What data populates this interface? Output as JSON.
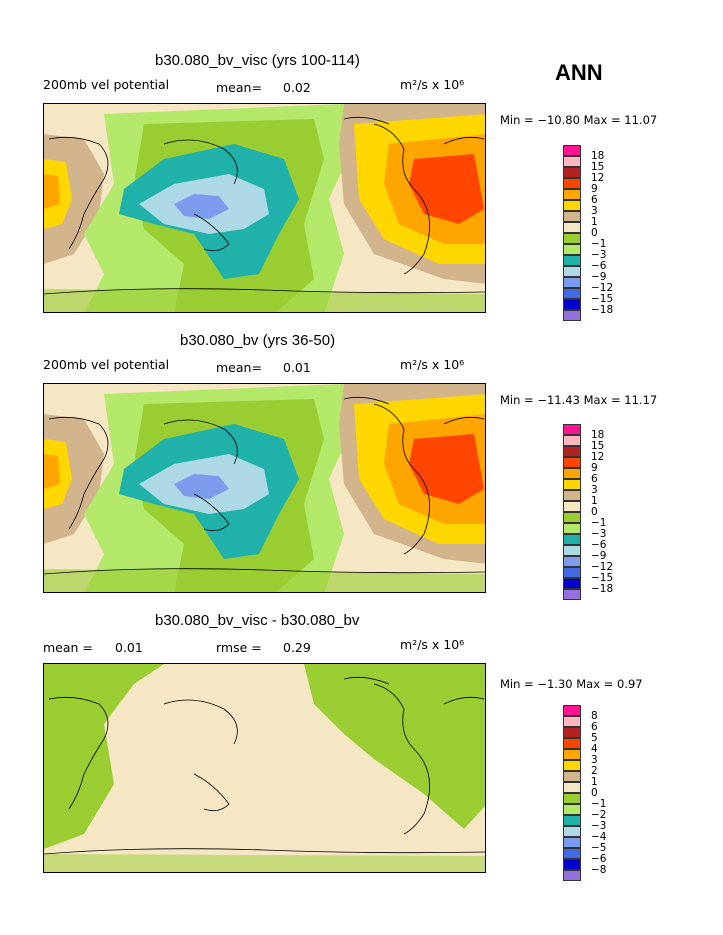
{
  "season": "ANN",
  "panels": [
    {
      "title": "b30.080_bv_visc (yrs 100-114)",
      "left_label": "200mb vel potential",
      "mean_label": "mean=",
      "mean_value": "0.02",
      "units": "m²/s x 10⁶",
      "minmax": "Min = −10.80 Max =  11.07"
    },
    {
      "title": "b30.080_bv (yrs 36-50)",
      "left_label": "200mb vel potential",
      "mean_label": "mean=",
      "mean_value": "0.01",
      "units": "m²/s x 10⁶",
      "minmax": "Min = −11.43 Max =  11.17"
    },
    {
      "title": "b30.080_bv_visc - b30.080_bv",
      "left_label": "mean =",
      "mean_value": "0.01",
      "rmse_label": "rmse =",
      "rmse_value": "0.29",
      "units": "m²/s x 10⁶",
      "minmax": "Min =  −1.30 Max =   0.97"
    }
  ],
  "legends": [
    {
      "labels": [
        "18",
        "15",
        "12",
        "9",
        "6",
        "3",
        "1",
        "0",
        "−1",
        "−3",
        "−6",
        "−9",
        "−12",
        "−15",
        "−18"
      ]
    },
    {
      "labels": [
        "18",
        "15",
        "12",
        "9",
        "6",
        "3",
        "1",
        "0",
        "−1",
        "−3",
        "−6",
        "−9",
        "−12",
        "−15",
        "−18"
      ]
    },
    {
      "labels": [
        "8",
        "6",
        "5",
        "4",
        "3",
        "2",
        "1",
        "0",
        "−1",
        "−2",
        "−3",
        "−4",
        "−5",
        "−6",
        "−8"
      ]
    }
  ],
  "colors": {
    "scale": [
      "#ff1493",
      "#ffb6c1",
      "#b22222",
      "#ff4500",
      "#ffa500",
      "#ffd700",
      "#d2b48c",
      "#f5e6c4",
      "#9acd32",
      "#b4e86b",
      "#20b2aa",
      "#add8e6",
      "#7b9ced",
      "#4169e1",
      "#0000cd",
      "#9370db"
    ]
  }
}
